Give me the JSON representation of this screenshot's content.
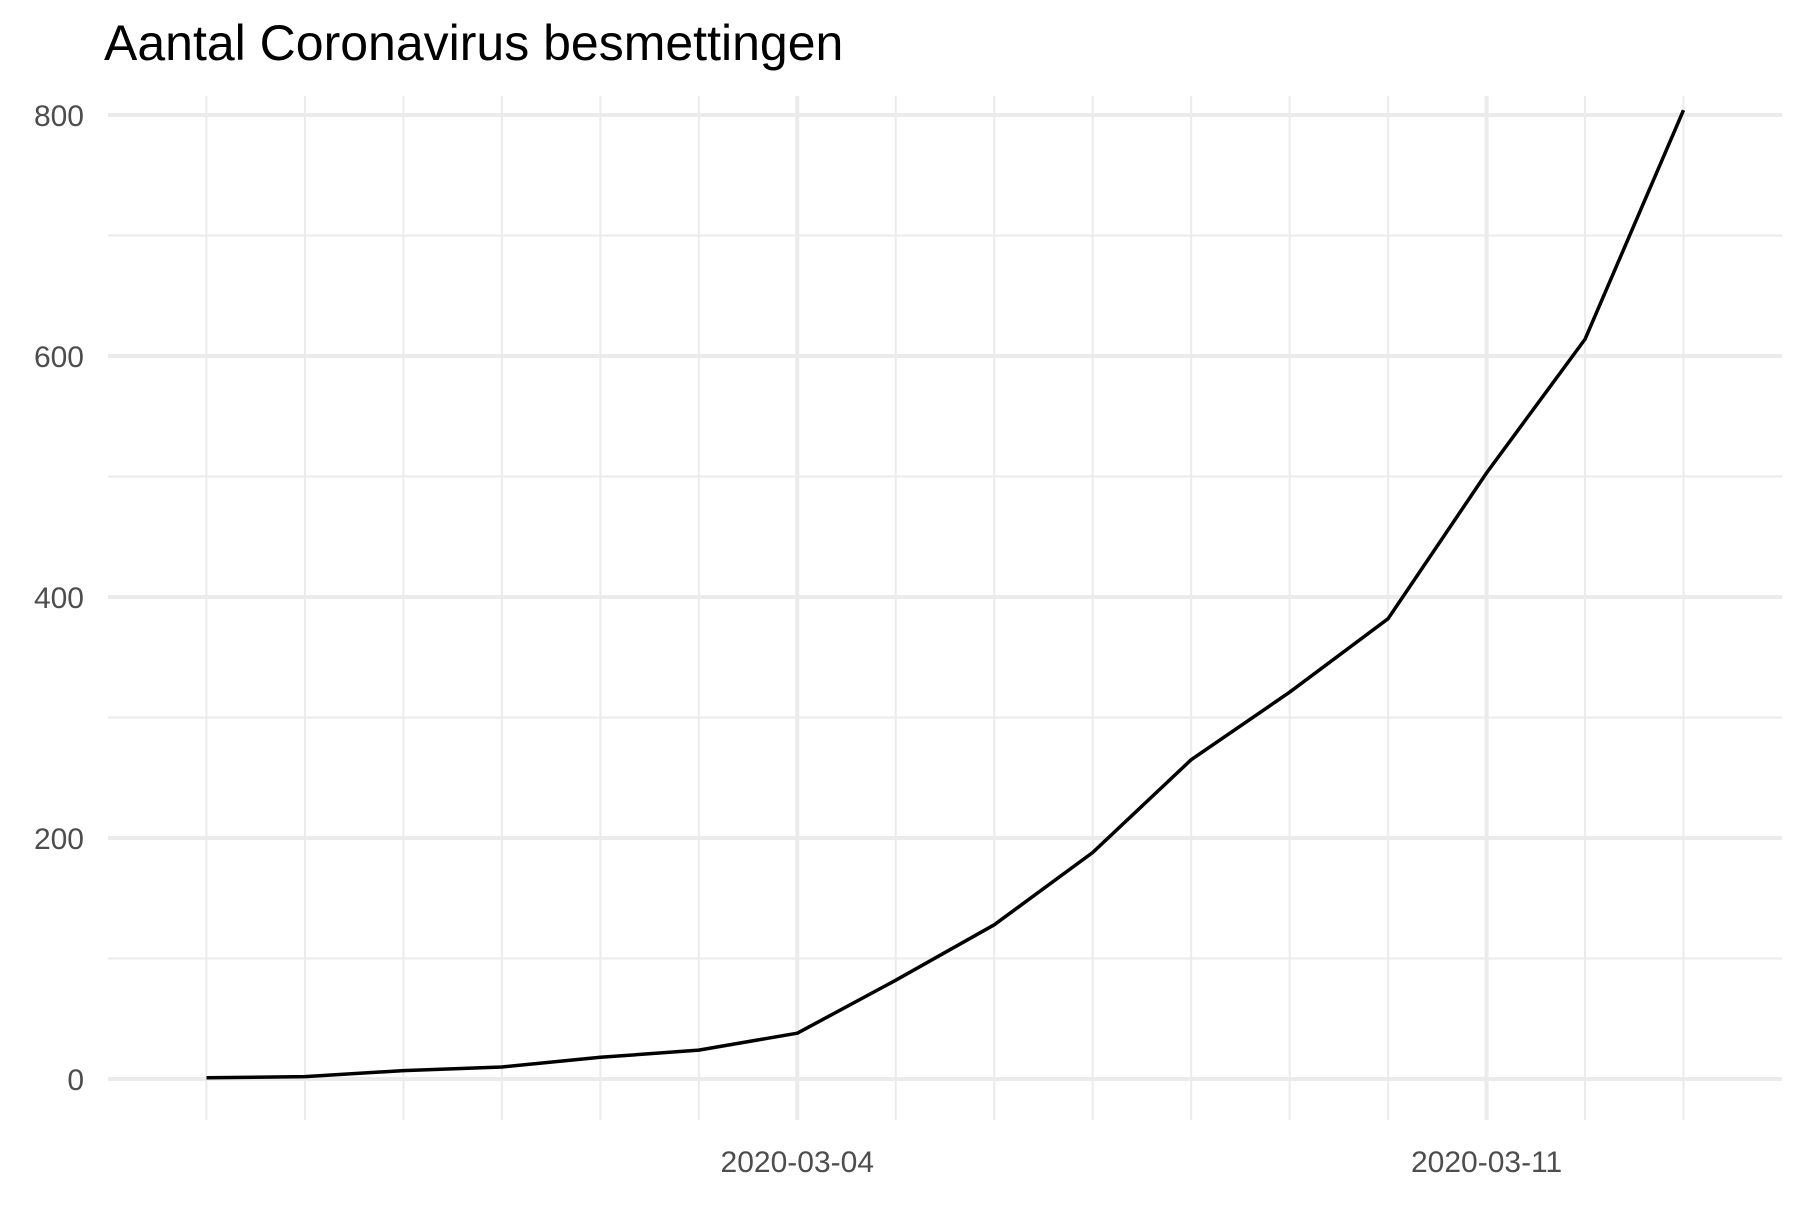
{
  "chart_data": {
    "type": "line",
    "title": "Aantal Coronavirus besmettingen",
    "xlabel": "",
    "ylabel": "",
    "x": [
      "2020-02-27",
      "2020-02-28",
      "2020-02-29",
      "2020-03-01",
      "2020-03-02",
      "2020-03-03",
      "2020-03-04",
      "2020-03-05",
      "2020-03-06",
      "2020-03-07",
      "2020-03-08",
      "2020-03-09",
      "2020-03-10",
      "2020-03-11",
      "2020-03-12",
      "2020-03-13"
    ],
    "series": [
      {
        "values": [
          1,
          2,
          7,
          10,
          18,
          24,
          38,
          82,
          128,
          188,
          265,
          321,
          382,
          503,
          614,
          804
        ]
      }
    ],
    "x_ticks": [
      "2020-03-04",
      "2020-03-11"
    ],
    "y_ticks": [
      0,
      200,
      400,
      600,
      800
    ],
    "xlim": [
      "2020-02-26",
      "2020-03-14"
    ],
    "ylim": [
      0,
      800
    ],
    "grid": true,
    "line_color": "#000000",
    "grid_color": "#ebebeb"
  }
}
